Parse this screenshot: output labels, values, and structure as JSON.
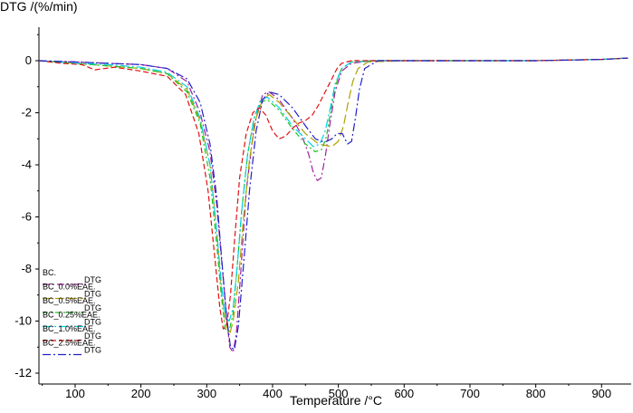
{
  "chart_data": {
    "type": "line",
    "title": "",
    "ylabel": "DTG /(%/min)",
    "xlabel": "Temperature /°C",
    "xlim": [
      45,
      945
    ],
    "ylim": [
      -12,
      1
    ],
    "xticks": [
      100,
      200,
      300,
      400,
      500,
      600,
      700,
      800,
      900
    ],
    "yticks": [
      0,
      -2,
      -4,
      -6,
      -8,
      -10,
      -12
    ],
    "grid": false,
    "legend_position": "bottom-left",
    "series": [
      {
        "name": "BC.",
        "legend_sublabel": "DTG",
        "color": "#a020a0",
        "x": [
          45,
          100,
          150,
          200,
          240,
          270,
          290,
          305,
          315,
          322,
          330,
          335,
          340,
          345,
          352,
          360,
          372,
          385,
          395,
          410,
          430,
          445,
          455,
          462,
          468,
          474,
          480,
          488,
          495,
          505,
          520,
          550,
          600,
          700,
          800,
          900,
          940
        ],
        "y": [
          0,
          -0.05,
          -0.1,
          -0.15,
          -0.3,
          -0.8,
          -2,
          -3.5,
          -5.5,
          -7.5,
          -9.8,
          -11,
          -11.2,
          -10.5,
          -8,
          -5,
          -2.5,
          -1.3,
          -1.2,
          -1.5,
          -2.2,
          -2.9,
          -3.6,
          -4.3,
          -4.6,
          -4.5,
          -3.7,
          -2.3,
          -1.2,
          -0.4,
          -0.1,
          0,
          0,
          0,
          0,
          0.05,
          0.1
        ]
      },
      {
        "name": "BC_0.0%EAE.",
        "legend_sublabel": "DTG",
        "color": "#b0a000",
        "x": [
          45,
          100,
          150,
          200,
          240,
          270,
          290,
          305,
          315,
          322,
          330,
          335,
          340,
          348,
          356,
          365,
          375,
          385,
          395,
          410,
          430,
          450,
          470,
          490,
          500,
          508,
          515,
          522,
          530,
          545,
          600,
          700,
          800,
          900,
          940
        ],
        "y": [
          0,
          -0.1,
          -0.2,
          -0.3,
          -0.5,
          -1.1,
          -2.3,
          -4,
          -6.5,
          -8.8,
          -10.2,
          -10.5,
          -10,
          -8.5,
          -6,
          -3.8,
          -2.2,
          -1.5,
          -1.3,
          -1.6,
          -2.2,
          -2.8,
          -3.2,
          -3.3,
          -3.1,
          -2.5,
          -1.6,
          -0.8,
          -0.3,
          -0.05,
          0,
          0,
          0,
          0.05,
          0.1
        ]
      },
      {
        "name": "BC_0.5%EAE.",
        "legend_sublabel": "DTG",
        "color": "#20c020",
        "x": [
          45,
          100,
          150,
          200,
          240,
          270,
          290,
          305,
          315,
          322,
          328,
          334,
          340,
          346,
          353,
          362,
          372,
          382,
          392,
          410,
          430,
          450,
          465,
          475,
          482,
          488,
          495,
          505,
          520,
          560,
          700,
          800,
          900,
          940
        ],
        "y": [
          0,
          -0.1,
          -0.2,
          -0.3,
          -0.5,
          -1.2,
          -2.4,
          -4.5,
          -7,
          -9,
          -10.3,
          -10.4,
          -9.7,
          -8,
          -5.8,
          -3.6,
          -2.2,
          -1.6,
          -1.5,
          -1.9,
          -2.6,
          -3.2,
          -3.5,
          -3.4,
          -2.9,
          -2,
          -1,
          -0.3,
          -0.05,
          0,
          0,
          0,
          0.05,
          0.1
        ]
      },
      {
        "name": "BC_0.25%EAE.",
        "legend_sublabel": "DTG",
        "color": "#00d0e0",
        "x": [
          45,
          100,
          150,
          200,
          240,
          270,
          290,
          305,
          315,
          322,
          328,
          334,
          340,
          346,
          353,
          362,
          372,
          382,
          392,
          410,
          430,
          450,
          462,
          472,
          480,
          488,
          495,
          505,
          520,
          560,
          700,
          800,
          900,
          940
        ],
        "y": [
          0,
          -0.1,
          -0.15,
          -0.25,
          -0.45,
          -1,
          -2.2,
          -4,
          -6.5,
          -8.5,
          -9.8,
          -10,
          -9.5,
          -8,
          -5.8,
          -3.6,
          -2.2,
          -1.5,
          -1.4,
          -1.8,
          -2.5,
          -3,
          -3.3,
          -3.2,
          -2.7,
          -1.8,
          -0.9,
          -0.3,
          -0.05,
          0,
          0,
          0,
          0.05,
          0.1
        ]
      },
      {
        "name": "BC_1.0%EAE.",
        "legend_sublabel": "DTG",
        "color": "#e01010",
        "x": [
          45,
          80,
          110,
          130,
          160,
          200,
          240,
          268,
          288,
          302,
          312,
          320,
          325,
          330,
          336,
          342,
          350,
          360,
          370,
          380,
          390,
          400,
          410,
          420,
          430,
          440,
          450,
          460,
          470,
          480,
          490,
          498,
          505,
          520,
          560,
          700,
          800,
          900,
          940
        ],
        "y": [
          0,
          -0.1,
          -0.15,
          -0.35,
          -0.25,
          -0.4,
          -0.6,
          -1.3,
          -2.8,
          -5,
          -7.5,
          -9.5,
          -10.3,
          -10.2,
          -9,
          -7,
          -4.5,
          -2.8,
          -2,
          -1.8,
          -2.1,
          -2.7,
          -3,
          -2.9,
          -2.6,
          -2.4,
          -2.3,
          -2.1,
          -1.7,
          -1.2,
          -0.7,
          -0.3,
          -0.1,
          0,
          0,
          0,
          0,
          0.05,
          0.1
        ]
      },
      {
        "name": "BC_2.5%EAE.",
        "legend_sublabel": "DTG",
        "color": "#2020c8",
        "x": [
          45,
          100,
          150,
          200,
          240,
          270,
          290,
          305,
          315,
          322,
          330,
          336,
          342,
          348,
          356,
          365,
          375,
          385,
          395,
          410,
          430,
          450,
          465,
          475,
          482,
          490,
          498,
          506,
          514,
          520,
          526,
          532,
          540,
          560,
          700,
          800,
          900,
          940
        ],
        "y": [
          0,
          -0.05,
          -0.1,
          -0.15,
          -0.3,
          -0.7,
          -1.6,
          -3.2,
          -5.2,
          -7.4,
          -9.8,
          -11,
          -11.1,
          -10.2,
          -7.8,
          -5,
          -2.7,
          -1.5,
          -1.2,
          -1.3,
          -1.8,
          -2.5,
          -3,
          -3.1,
          -3.1,
          -3,
          -2.8,
          -2.8,
          -3.2,
          -3.1,
          -2.2,
          -1.1,
          -0.3,
          0,
          0,
          0,
          0.05,
          0.1
        ]
      }
    ]
  }
}
